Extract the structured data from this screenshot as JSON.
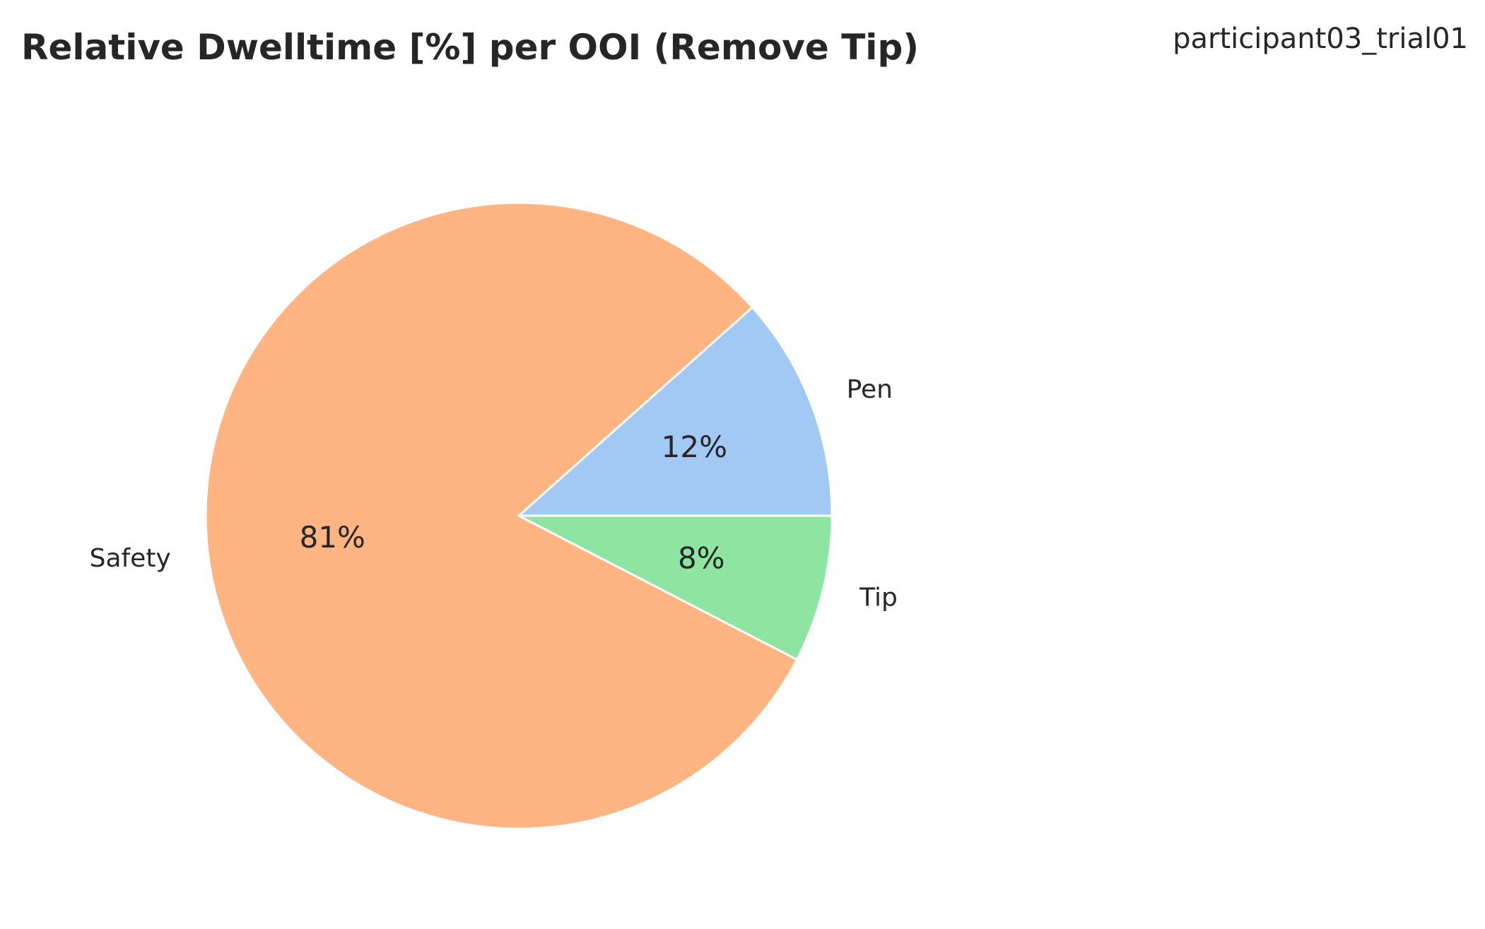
{
  "chart_data": {
    "type": "pie",
    "title": "Relative Dwelltime [%] per OOI (Remove Tip)",
    "subtitle": "participant03_trial01",
    "slices": [
      {
        "label": "Pen",
        "value": 11.6,
        "pct_label": "12%",
        "color": "#a1c9f4"
      },
      {
        "label": "Safety",
        "value": 80.8,
        "pct_label": "81%",
        "color": "#ffb482"
      },
      {
        "label": "Tip",
        "value": 7.6,
        "pct_label": "8%",
        "color": "#8de5a1"
      }
    ],
    "start_angle_deg": 0,
    "direction": "counterclockwise",
    "edge_color": "#ffffff"
  }
}
